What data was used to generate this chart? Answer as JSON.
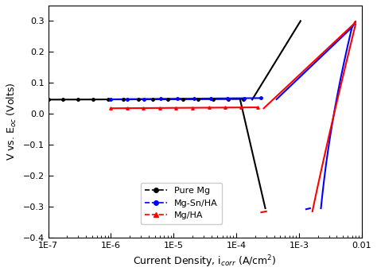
{
  "title": "",
  "xlabel": "Current Density, i$_{corr}$ (A/cm$^2$)",
  "ylabel": "V vs. E$_{oc}$ (Volts)",
  "xlim_log": [
    -7,
    -2
  ],
  "ylim": [
    -0.4,
    0.35
  ],
  "yticks": [
    -0.4,
    -0.3,
    -0.2,
    -0.1,
    0.0,
    0.1,
    0.2,
    0.3
  ],
  "background": "#ffffff",
  "pure_mg": {
    "color": "black",
    "i_corr": 0.00013,
    "E_corr": 0.046,
    "marker": "o"
  },
  "mg_sn_ha": {
    "color": "blue",
    "i_corr": 0.00025,
    "E_corr": 0.047,
    "marker": "o"
  },
  "mg_ha": {
    "color": "red",
    "i_corr": 0.00022,
    "E_corr": 0.018,
    "marker": "^"
  }
}
